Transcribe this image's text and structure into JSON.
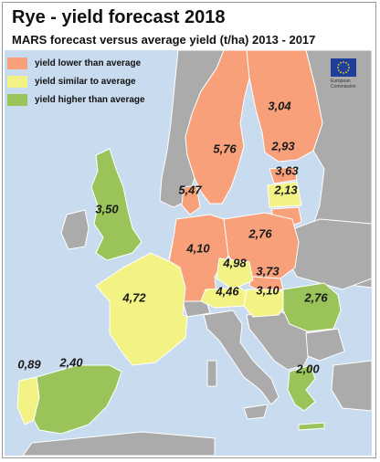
{
  "title": "Rye - yield forecast 2018",
  "subtitle": "MARS forecast versus average yield (t/ha) 2013 - 2017",
  "colors": {
    "sea": "#c9dbee",
    "land": "#ababab",
    "lower": "#f7a07a",
    "similar": "#f3f385",
    "higher": "#9ac45a",
    "border": "#ffffff"
  },
  "legend": [
    {
      "label": "yield lower than average",
      "color": "#f7a07a"
    },
    {
      "label": "yield similar to average",
      "color": "#f3f385"
    },
    {
      "label": "yield higher than average",
      "color": "#9ac45a"
    }
  ],
  "logo": {
    "line1": "European",
    "line2": "Commission"
  },
  "countries": [
    {
      "id": "finland",
      "value": "3,04",
      "category": "lower"
    },
    {
      "id": "sweden",
      "value": "5,76",
      "category": "lower"
    },
    {
      "id": "estonia",
      "value": "2,93",
      "category": "lower"
    },
    {
      "id": "latvia",
      "value": "3,63",
      "category": "similar"
    },
    {
      "id": "lithuania",
      "value": "2,13",
      "category": "lower"
    },
    {
      "id": "denmark",
      "value": "5,47",
      "category": "lower"
    },
    {
      "id": "uk",
      "value": "3,50",
      "category": "higher"
    },
    {
      "id": "germany",
      "value": "4,10",
      "category": "lower"
    },
    {
      "id": "poland",
      "value": "2,76",
      "category": "lower"
    },
    {
      "id": "czechia",
      "value": "4,98",
      "category": "similar"
    },
    {
      "id": "slovakia",
      "value": "3,73",
      "category": "lower"
    },
    {
      "id": "austria",
      "value": "4,46",
      "category": "similar"
    },
    {
      "id": "hungary",
      "value": "3,10",
      "category": "similar"
    },
    {
      "id": "romania",
      "value": "2,76",
      "category": "higher"
    },
    {
      "id": "france",
      "value": "4,72",
      "category": "similar"
    },
    {
      "id": "portugal",
      "value": "0,89",
      "category": "similar"
    },
    {
      "id": "spain",
      "value": "2,40",
      "category": "higher"
    },
    {
      "id": "greece",
      "value": "2,00",
      "category": "higher"
    }
  ]
}
